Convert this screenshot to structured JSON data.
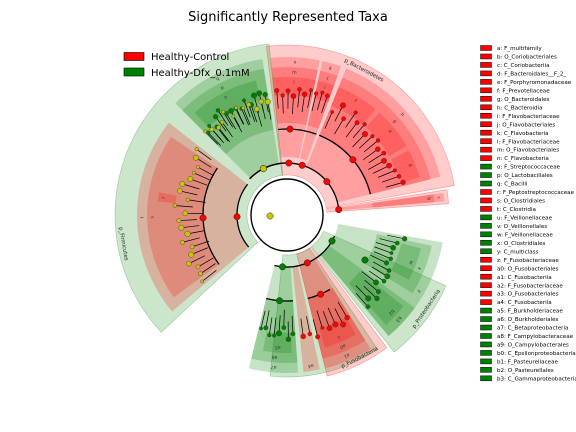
{
  "chart_data": {
    "type": "cladogram",
    "title": "Significantly Represented Taxa",
    "legend": [
      {
        "name": "Healthy-Control",
        "color": "#ff0000"
      },
      {
        "name": "Healthy-Dfx_0.1mM",
        "color": "#008000"
      }
    ],
    "phyla": [
      {
        "name": "p_Bacteroidetes",
        "class": "Healthy-Control"
      },
      {
        "name": "p_Firmicutes",
        "class": "mixed"
      },
      {
        "name": "p_Fusobacteria",
        "class": "Healthy-Control"
      },
      {
        "name": "p_Proteobacteria",
        "class": "Healthy-Dfx_0.1mM"
      }
    ],
    "taxa": [
      {
        "key": "a",
        "name": "F_multifamily",
        "class": "Healthy-Control"
      },
      {
        "key": "b",
        "name": "O_Coriobacteriales",
        "class": "Healthy-Control"
      },
      {
        "key": "c",
        "name": "C_Coriobacteriia",
        "class": "Healthy-Control"
      },
      {
        "key": "d",
        "name": "F_Bacteroidales__F_2_",
        "class": "Healthy-Control"
      },
      {
        "key": "e",
        "name": "F_Porphyromonadaceae",
        "class": "Healthy-Control"
      },
      {
        "key": "f",
        "name": "F_Prevotellaceae",
        "class": "Healthy-Control"
      },
      {
        "key": "g",
        "name": "O_Bacteroidales",
        "class": "Healthy-Control"
      },
      {
        "key": "h",
        "name": "C_Bacteroidia",
        "class": "Healthy-Control"
      },
      {
        "key": "i",
        "name": "F_Flavobacteriaceae",
        "class": "Healthy-Control"
      },
      {
        "key": "j",
        "name": "O_Flavobacteriales",
        "class": "Healthy-Control"
      },
      {
        "key": "k",
        "name": "C_Flavobacteria",
        "class": "Healthy-Control"
      },
      {
        "key": "l",
        "name": "F_Flavobacteriaceae",
        "class": "Healthy-Control"
      },
      {
        "key": "m",
        "name": "O_Flavobacteriales",
        "class": "Healthy-Control"
      },
      {
        "key": "n",
        "name": "C_Flavobacteria",
        "class": "Healthy-Control"
      },
      {
        "key": "o",
        "name": "F_Streptococcaceae",
        "class": "Healthy-Dfx_0.1mM"
      },
      {
        "key": "p",
        "name": "O_Lactobacillales",
        "class": "Healthy-Dfx_0.1mM"
      },
      {
        "key": "q",
        "name": "C_Bacilli",
        "class": "Healthy-Dfx_0.1mM"
      },
      {
        "key": "r",
        "name": "F_Peptostreptococcaceae",
        "class": "Healthy-Control"
      },
      {
        "key": "s",
        "name": "O_Clostridiales",
        "class": "Healthy-Control"
      },
      {
        "key": "t",
        "name": "C_Clostridia",
        "class": "Healthy-Control"
      },
      {
        "key": "u",
        "name": "F_Veillonellaceae",
        "class": "Healthy-Dfx_0.1mM"
      },
      {
        "key": "v",
        "name": "O_Veillonellales",
        "class": "Healthy-Dfx_0.1mM"
      },
      {
        "key": "w",
        "name": "F_Veillonellaceae",
        "class": "Healthy-Dfx_0.1mM"
      },
      {
        "key": "x",
        "name": "O_Clostridiales",
        "class": "Healthy-Dfx_0.1mM"
      },
      {
        "key": "y",
        "name": "C_multiclass",
        "class": "Healthy-Dfx_0.1mM"
      },
      {
        "key": "z",
        "name": "F_Fusobacteriaceae",
        "class": "Healthy-Control"
      },
      {
        "key": "a0",
        "name": "O_Fusobacteriales",
        "class": "Healthy-Control"
      },
      {
        "key": "a1",
        "name": "C_Fusobacteriia",
        "class": "Healthy-Control"
      },
      {
        "key": "a2",
        "name": "F_Fusobacteriaceae",
        "class": "Healthy-Control"
      },
      {
        "key": "a3",
        "name": "O_Fusobacteriales",
        "class": "Healthy-Control"
      },
      {
        "key": "a4",
        "name": "C_Fusobacteriia",
        "class": "Healthy-Control"
      },
      {
        "key": "a5",
        "name": "F_Burkholderiaceae",
        "class": "Healthy-Dfx_0.1mM"
      },
      {
        "key": "a6",
        "name": "O_Burkholderiales",
        "class": "Healthy-Dfx_0.1mM"
      },
      {
        "key": "a7",
        "name": "C_Betaproteobacteria",
        "class": "Healthy-Dfx_0.1mM"
      },
      {
        "key": "a8",
        "name": "F_Campylobacteraceae",
        "class": "Healthy-Dfx_0.1mM"
      },
      {
        "key": "a9",
        "name": "O_Campylobacterales",
        "class": "Healthy-Dfx_0.1mM"
      },
      {
        "key": "b0",
        "name": "C_Epsilonproteobacteria",
        "class": "Healthy-Dfx_0.1mM"
      },
      {
        "key": "b1",
        "name": "F_Pasteurellaceae",
        "class": "Healthy-Dfx_0.1mM"
      },
      {
        "key": "b2",
        "name": "O_Pasteurellales",
        "class": "Healthy-Dfx_0.1mM"
      },
      {
        "key": "b3",
        "name": "C_Gammaproteobacteria",
        "class": "Healthy-Dfx_0.1mM"
      }
    ]
  }
}
